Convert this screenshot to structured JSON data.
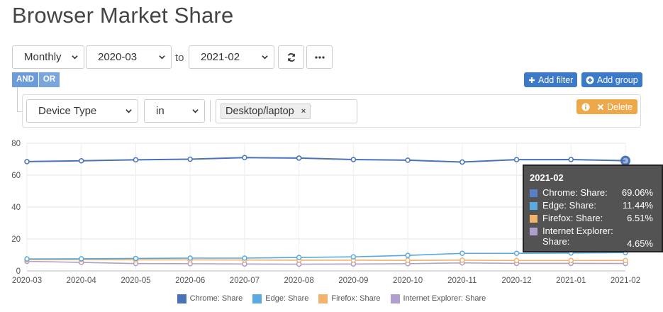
{
  "page_title": "Browser Market Share",
  "controls": {
    "interval": "Monthly",
    "from": "2020-03",
    "to_label": "to",
    "to": "2021-02"
  },
  "icons": {
    "refresh": "refresh-icon",
    "more": "ellipsis-icon",
    "add_filter": "plus-icon",
    "add_group": "plus-circle-icon",
    "info": "info-icon",
    "delete": "close-icon",
    "caret": "chevron-down-icon"
  },
  "filter": {
    "and_label": "AND",
    "or_label": "OR",
    "add_filter_label": "Add filter",
    "add_group_label": "Add group",
    "field": "Device Type",
    "operator": "in",
    "value_tag": "Desktop/laptop",
    "remove_tag": "×",
    "delete_label": "Delete"
  },
  "colors": {
    "chrome": "#4a72b8",
    "edge": "#5aaae0",
    "firefox": "#f0b46c",
    "ie": "#b09fce",
    "accent": "#3c7ac8",
    "warning": "#eea84a"
  },
  "chart_data": {
    "type": "line",
    "x": [
      "2020-03",
      "2020-04",
      "2020-05",
      "2020-06",
      "2020-07",
      "2020-08",
      "2020-09",
      "2020-10",
      "2020-11",
      "2020-12",
      "2021-01",
      "2021-02"
    ],
    "ylim": [
      0,
      80
    ],
    "yticks": [
      0,
      20,
      40,
      60,
      80
    ],
    "grid": true,
    "legend_position": "bottom",
    "series": [
      {
        "name": "Chrome: Share",
        "color": "#4a72b8",
        "values": [
          68.5,
          69.0,
          69.6,
          70.0,
          71.0,
          70.7,
          69.8,
          69.4,
          68.2,
          69.7,
          69.8,
          69.06
        ]
      },
      {
        "name": "Edge: Share",
        "color": "#5aaae0",
        "values": [
          7.5,
          7.6,
          7.8,
          8.0,
          8.0,
          8.4,
          8.8,
          9.7,
          11.0,
          11.0,
          11.2,
          11.44
        ]
      },
      {
        "name": "Firefox: Share",
        "color": "#f0b46c",
        "values": [
          7.0,
          7.1,
          6.9,
          6.9,
          6.8,
          6.7,
          6.7,
          6.6,
          6.7,
          6.5,
          6.5,
          6.51
        ]
      },
      {
        "name": "Internet Explorer: Share",
        "color": "#b09fce",
        "values": [
          6.0,
          5.3,
          4.6,
          4.5,
          4.3,
          4.2,
          4.3,
          4.5,
          5.0,
          4.7,
          4.7,
          4.65
        ]
      }
    ],
    "tooltip": {
      "title": "2021-02",
      "rows": [
        {
          "label": "Chrome: Share:",
          "value": "69.06%"
        },
        {
          "label": "Edge: Share:",
          "value": "11.44%"
        },
        {
          "label": "Firefox: Share:",
          "value": "6.51%"
        },
        {
          "label": "Internet Explorer: Share:",
          "value": "4.65%"
        }
      ]
    }
  }
}
